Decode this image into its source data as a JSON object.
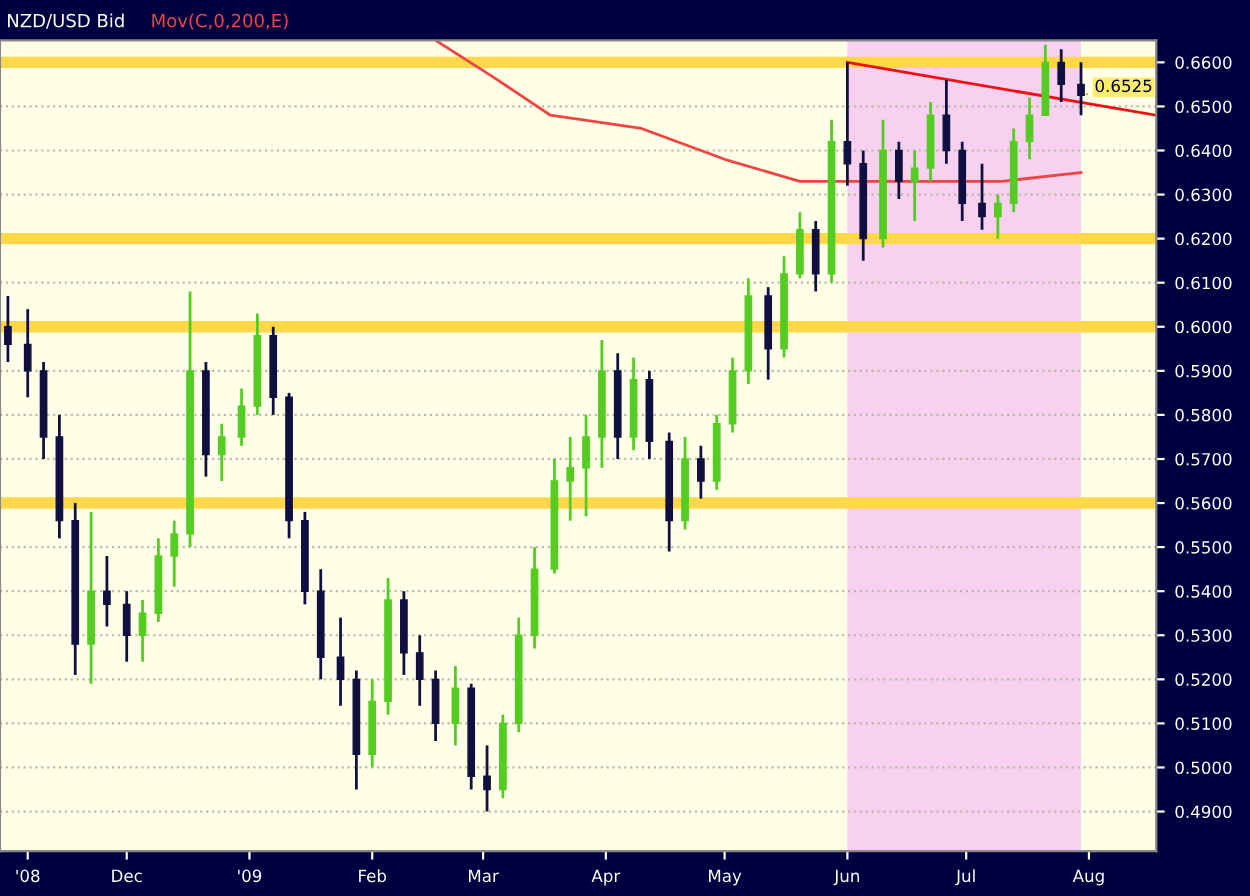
{
  "chart_data": {
    "type": "candlestick",
    "title": "NZD/USD Bid",
    "x": [
      "2008-11-01",
      "2008-11-06",
      "2008-11-10",
      "2008-11-14",
      "2008-11-18",
      "2008-11-22",
      "2008-11-26",
      "2008-12-01",
      "2008-12-05",
      "2008-12-09",
      "2008-12-13",
      "2008-12-17",
      "2008-12-21",
      "2008-12-25",
      "2008-12-30",
      "2009-01-03",
      "2009-01-07",
      "2009-01-11",
      "2009-01-15",
      "2009-01-19",
      "2009-01-24",
      "2009-01-28",
      "2009-02-01",
      "2009-02-05",
      "2009-02-09",
      "2009-02-13",
      "2009-02-17",
      "2009-02-22",
      "2009-02-26",
      "2009-03-02",
      "2009-03-06",
      "2009-03-10",
      "2009-03-14",
      "2009-03-19",
      "2009-03-23",
      "2009-03-27",
      "2009-03-31",
      "2009-04-04",
      "2009-04-08",
      "2009-04-12",
      "2009-04-17",
      "2009-04-21",
      "2009-04-25",
      "2009-04-29",
      "2009-05-03",
      "2009-05-07",
      "2009-05-12",
      "2009-05-16",
      "2009-05-20",
      "2009-05-24",
      "2009-05-28",
      "2009-06-01",
      "2009-06-05",
      "2009-06-10",
      "2009-06-14",
      "2009-06-18",
      "2009-06-22",
      "2009-06-26",
      "2009-06-30",
      "2009-07-05",
      "2009-07-09",
      "2009-07-13",
      "2009-07-17",
      "2009-07-21",
      "2009-07-25",
      "2009-07-30"
    ],
    "ohlc": [
      [
        0.6,
        0.607,
        0.592,
        0.596
      ],
      [
        0.596,
        0.604,
        0.584,
        0.59
      ],
      [
        0.59,
        0.592,
        0.57,
        0.575
      ],
      [
        0.575,
        0.58,
        0.552,
        0.556
      ],
      [
        0.556,
        0.56,
        0.521,
        0.528
      ],
      [
        0.528,
        0.558,
        0.519,
        0.54
      ],
      [
        0.54,
        0.548,
        0.532,
        0.537
      ],
      [
        0.537,
        0.54,
        0.524,
        0.53
      ],
      [
        0.53,
        0.538,
        0.524,
        0.535
      ],
      [
        0.535,
        0.552,
        0.533,
        0.548
      ],
      [
        0.548,
        0.556,
        0.541,
        0.553
      ],
      [
        0.553,
        0.608,
        0.55,
        0.59
      ],
      [
        0.59,
        0.592,
        0.566,
        0.571
      ],
      [
        0.571,
        0.578,
        0.565,
        0.575
      ],
      [
        0.575,
        0.586,
        0.573,
        0.582
      ],
      [
        0.582,
        0.603,
        0.58,
        0.598
      ],
      [
        0.598,
        0.6,
        0.58,
        0.584
      ],
      [
        0.584,
        0.585,
        0.552,
        0.556
      ],
      [
        0.556,
        0.558,
        0.537,
        0.54
      ],
      [
        0.54,
        0.545,
        0.52,
        0.525
      ],
      [
        0.525,
        0.534,
        0.514,
        0.52
      ],
      [
        0.52,
        0.522,
        0.495,
        0.503
      ],
      [
        0.503,
        0.52,
        0.5,
        0.515
      ],
      [
        0.515,
        0.543,
        0.512,
        0.538
      ],
      [
        0.538,
        0.54,
        0.521,
        0.526
      ],
      [
        0.526,
        0.53,
        0.514,
        0.52
      ],
      [
        0.52,
        0.522,
        0.506,
        0.51
      ],
      [
        0.51,
        0.523,
        0.505,
        0.518
      ],
      [
        0.518,
        0.519,
        0.495,
        0.498
      ],
      [
        0.498,
        0.505,
        0.49,
        0.495
      ],
      [
        0.495,
        0.512,
        0.493,
        0.51
      ],
      [
        0.51,
        0.534,
        0.508,
        0.53
      ],
      [
        0.53,
        0.55,
        0.527,
        0.545
      ],
      [
        0.545,
        0.57,
        0.544,
        0.565
      ],
      [
        0.565,
        0.575,
        0.556,
        0.568
      ],
      [
        0.568,
        0.58,
        0.557,
        0.575
      ],
      [
        0.575,
        0.597,
        0.568,
        0.59
      ],
      [
        0.59,
        0.594,
        0.57,
        0.575
      ],
      [
        0.575,
        0.593,
        0.572,
        0.588
      ],
      [
        0.588,
        0.59,
        0.57,
        0.574
      ],
      [
        0.574,
        0.576,
        0.549,
        0.556
      ],
      [
        0.556,
        0.575,
        0.554,
        0.57
      ],
      [
        0.57,
        0.573,
        0.561,
        0.565
      ],
      [
        0.565,
        0.58,
        0.563,
        0.578
      ],
      [
        0.578,
        0.593,
        0.576,
        0.59
      ],
      [
        0.59,
        0.611,
        0.587,
        0.607
      ],
      [
        0.607,
        0.609,
        0.588,
        0.595
      ],
      [
        0.595,
        0.616,
        0.593,
        0.612
      ],
      [
        0.612,
        0.626,
        0.611,
        0.622
      ],
      [
        0.622,
        0.624,
        0.608,
        0.612
      ],
      [
        0.612,
        0.647,
        0.61,
        0.642
      ],
      [
        0.642,
        0.66,
        0.632,
        0.637
      ],
      [
        0.637,
        0.64,
        0.615,
        0.62
      ],
      [
        0.62,
        0.647,
        0.618,
        0.64
      ],
      [
        0.64,
        0.642,
        0.629,
        0.633
      ],
      [
        0.633,
        0.64,
        0.624,
        0.636
      ],
      [
        0.636,
        0.651,
        0.633,
        0.648
      ],
      [
        0.648,
        0.656,
        0.637,
        0.64
      ],
      [
        0.64,
        0.642,
        0.624,
        0.628
      ],
      [
        0.628,
        0.637,
        0.622,
        0.625
      ],
      [
        0.625,
        0.63,
        0.62,
        0.628
      ],
      [
        0.628,
        0.645,
        0.626,
        0.642
      ],
      [
        0.642,
        0.652,
        0.638,
        0.648
      ],
      [
        0.648,
        0.664,
        0.648,
        0.66
      ],
      [
        0.66,
        0.663,
        0.651,
        0.655
      ],
      [
        0.655,
        0.66,
        0.648,
        0.6525
      ]
    ],
    "colors": [
      "#101040",
      "#101040",
      "#101040",
      "#101040",
      "#101040",
      "#55cc22",
      "#101040",
      "#101040",
      "#55cc22",
      "#55cc22",
      "#55cc22",
      "#55cc22",
      "#101040",
      "#55cc22",
      "#55cc22",
      "#55cc22",
      "#101040",
      "#101040",
      "#101040",
      "#101040",
      "#101040",
      "#101040",
      "#55cc22",
      "#55cc22",
      "#101040",
      "#101040",
      "#101040",
      "#55cc22",
      "#101040",
      "#101040",
      "#55cc22",
      "#55cc22",
      "#55cc22",
      "#55cc22",
      "#55cc22",
      "#55cc22",
      "#55cc22",
      "#101040",
      "#55cc22",
      "#101040",
      "#101040",
      "#55cc22",
      "#101040",
      "#55cc22",
      "#55cc22",
      "#55cc22",
      "#101040",
      "#55cc22",
      "#55cc22",
      "#101040",
      "#55cc22",
      "#101040",
      "#101040",
      "#55cc22",
      "#101040",
      "#55cc22",
      "#55cc22",
      "#101040",
      "#101040",
      "#101040",
      "#55cc22",
      "#55cc22",
      "#55cc22",
      "#55cc22",
      "#101040",
      "#101040"
    ],
    "series": [
      {
        "type": "line",
        "name": "Mov(C,0,200,E)",
        "color": "#ee4444",
        "x": [
          "2009-02-17",
          "2009-03-03",
          "2009-03-18",
          "2009-04-10",
          "2009-05-01",
          "2009-05-20",
          "2009-06-15",
          "2009-07-10",
          "2009-07-30"
        ],
        "values": [
          0.665,
          0.657,
          0.648,
          0.645,
          0.638,
          0.633,
          0.633,
          0.633,
          0.635
        ]
      },
      {
        "type": "line",
        "color": "#ee1111",
        "x": [
          "2009-06-01",
          "2009-08-18"
        ],
        "values": [
          0.66,
          0.648
        ]
      }
    ],
    "bands": [
      {
        "axis": "x",
        "from": "2009-06-01",
        "to": "2009-07-30",
        "color": "#f8d0f0"
      },
      {
        "axis": "y",
        "from": 0.6587,
        "to": 0.6613,
        "color": "#ffd84a"
      },
      {
        "axis": "y",
        "from": 0.6187,
        "to": 0.6213,
        "color": "#ffd84a"
      },
      {
        "axis": "y",
        "from": 0.5987,
        "to": 0.6013,
        "color": "#ffd84a"
      },
      {
        "axis": "y",
        "from": 0.5587,
        "to": 0.5613,
        "color": "#ffd84a"
      }
    ],
    "annotations": [
      {
        "text": "0.6525",
        "x": "2009-07-30",
        "y": 0.6525
      }
    ],
    "xlim": [
      "2008-10-30",
      "2009-08-18"
    ],
    "xticks": [
      {
        "value": "2008-11-06",
        "label": "'08"
      },
      {
        "value": "2008-12-01",
        "label": "Dec"
      },
      {
        "value": "2009-01-01",
        "label": "'09"
      },
      {
        "value": "2009-02-01",
        "label": "Feb"
      },
      {
        "value": "2009-03-01",
        "label": "Mar"
      },
      {
        "value": "2009-04-01",
        "label": "Apr"
      },
      {
        "value": "2009-05-01",
        "label": "May"
      },
      {
        "value": "2009-06-01",
        "label": "Jun"
      },
      {
        "value": "2009-07-01",
        "label": "Jul"
      },
      {
        "value": "2009-08-01",
        "label": "Aug"
      }
    ],
    "ylim": [
      0.481,
      0.665
    ],
    "yticks": [
      {
        "value": 0.49,
        "label": "0.4900"
      },
      {
        "value": 0.5,
        "label": "0.5000"
      },
      {
        "value": 0.51,
        "label": "0.5100"
      },
      {
        "value": 0.52,
        "label": "0.5200"
      },
      {
        "value": 0.53,
        "label": "0.5300"
      },
      {
        "value": 0.54,
        "label": "0.5400"
      },
      {
        "value": 0.55,
        "label": "0.5500"
      },
      {
        "value": 0.56,
        "label": "0.5600"
      },
      {
        "value": 0.57,
        "label": "0.5700"
      },
      {
        "value": 0.58,
        "label": "0.5800"
      },
      {
        "value": 0.59,
        "label": "0.5900"
      },
      {
        "value": 0.6,
        "label": "0.6000"
      },
      {
        "value": 0.61,
        "label": "0.6100"
      },
      {
        "value": 0.62,
        "label": "0.6200"
      },
      {
        "value": 0.63,
        "label": "0.6300"
      },
      {
        "value": 0.64,
        "label": "0.6400"
      },
      {
        "value": 0.65,
        "label": "0.6500"
      },
      {
        "value": 0.66,
        "label": "0.6600"
      }
    ],
    "grid": "y"
  }
}
